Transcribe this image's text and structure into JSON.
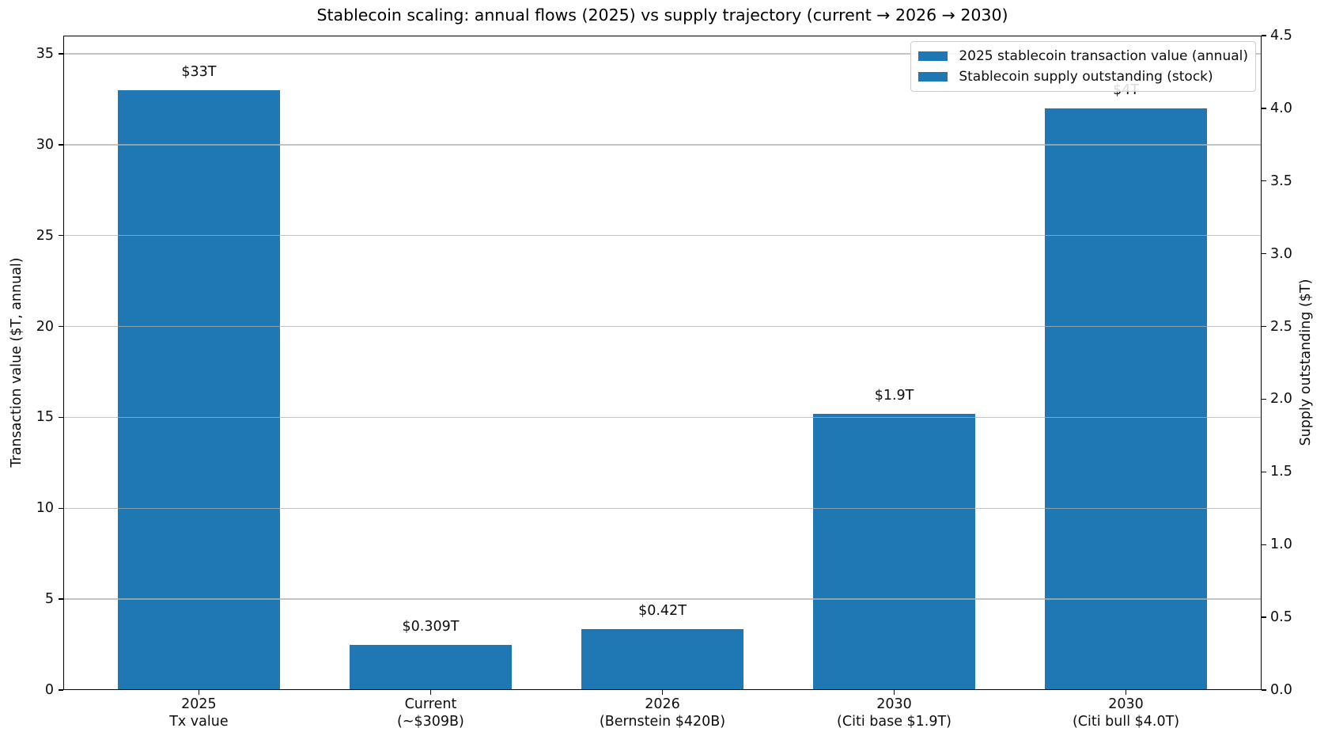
{
  "figure": {
    "background": "#ffffff"
  },
  "chart_data": {
    "type": "bar",
    "title": "Stablecoin scaling: annual flows (2025) vs supply trajectory (current → 2026 → 2030)",
    "bar_color": "#1f77b4",
    "grid": {
      "on": true,
      "axis": "left",
      "values": [
        5,
        10,
        15,
        20,
        25,
        30,
        35
      ]
    },
    "left_axis": {
      "label": "Transaction value ($T, annual)",
      "ticks": [
        "0",
        "5",
        "10",
        "15",
        "20",
        "25",
        "30",
        "35"
      ],
      "tick_values": [
        0,
        5,
        10,
        15,
        20,
        25,
        30,
        35
      ],
      "ylim": [
        0,
        36
      ]
    },
    "right_axis": {
      "label": "Supply outstanding ($T)",
      "ticks": [
        "0.0",
        "0.5",
        "1.0",
        "1.5",
        "2.0",
        "2.5",
        "3.0",
        "3.5",
        "4.0",
        "4.5"
      ],
      "tick_values": [
        0,
        0.5,
        1.0,
        1.5,
        2.0,
        2.5,
        3.0,
        3.5,
        4.0,
        4.5
      ],
      "ylim": [
        0,
        4.5
      ]
    },
    "bars": [
      {
        "category": [
          "2025",
          "Tx value"
        ],
        "series": "2025 stablecoin transaction value (annual)",
        "axis": "left",
        "value": 33,
        "label": "$33T"
      },
      {
        "category": [
          "Current",
          "(~$309B)"
        ],
        "series": "Stablecoin supply outstanding (stock)",
        "axis": "right",
        "value": 0.309,
        "label": "$0.309T"
      },
      {
        "category": [
          "2026",
          "(Bernstein $420B)"
        ],
        "series": "Stablecoin supply outstanding (stock)",
        "axis": "right",
        "value": 0.42,
        "label": "$0.42T"
      },
      {
        "category": [
          "2030",
          "(Citi base $1.9T)"
        ],
        "series": "Stablecoin supply outstanding (stock)",
        "axis": "right",
        "value": 1.9,
        "label": "$1.9T"
      },
      {
        "category": [
          "2030",
          "(Citi bull $4.0T)"
        ],
        "series": "Stablecoin supply outstanding (stock)",
        "axis": "right",
        "value": 4.0,
        "label": "$4T"
      }
    ],
    "legend": {
      "position": "upper right",
      "entries": [
        {
          "label": "2025 stablecoin transaction value (annual)",
          "color": "#1f77b4"
        },
        {
          "label": "Stablecoin supply outstanding (stock)",
          "color": "#1f77b4"
        }
      ]
    }
  },
  "colors": {
    "bar": "#1f77b4",
    "grid": "#b0b0b0",
    "spine": "#000000",
    "text": "#0d0d0d",
    "legend_border": "#cccccc"
  }
}
